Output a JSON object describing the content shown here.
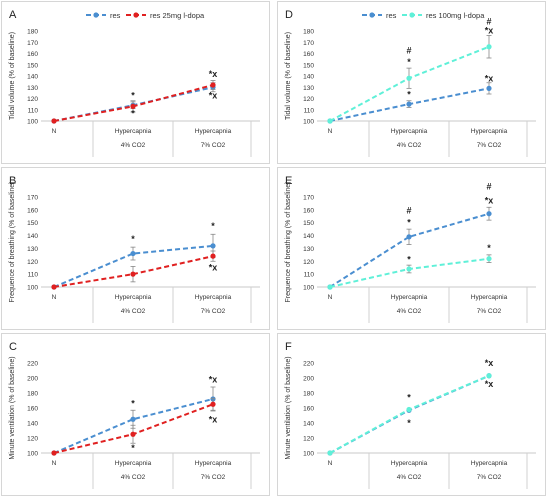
{
  "colors": {
    "res": "#4a8ed0",
    "red": "#e02020",
    "cyan": "#5ff0d8",
    "err": "#888888",
    "frame": "#d6d6d6",
    "grid_text": "#333333"
  },
  "chart_data": [
    {
      "panel": "A",
      "type": "line",
      "ylabel": "Tidal volume (% of baseline)",
      "ylim": [
        100,
        180
      ],
      "yticks": [
        100,
        110,
        120,
        130,
        140,
        150,
        160,
        170,
        180
      ],
      "x": [
        "N",
        "Hypercapnia",
        "Hypercapnia"
      ],
      "x_sub": [
        "",
        "4% CO2",
        "7% CO2"
      ],
      "legend": "top",
      "series": [
        {
          "name": "res",
          "color_key": "res",
          "values": [
            100,
            114,
            130
          ],
          "err": [
            0,
            3,
            4
          ]
        },
        {
          "name": "res 25mg l-dopa",
          "color_key": "red",
          "values": [
            100,
            113,
            132
          ],
          "err": [
            0,
            5,
            4
          ]
        }
      ],
      "annotations": [
        {
          "x": 1,
          "y": 120,
          "text": "*"
        },
        {
          "x": 1,
          "y": 104,
          "text": "*"
        },
        {
          "x": 2,
          "y": 139,
          "text": "*x"
        },
        {
          "x": 2,
          "y": 120,
          "text": "*x"
        }
      ]
    },
    {
      "panel": "B",
      "type": "line",
      "ylabel": "Frequence of breathing (% of baseline)",
      "ylim": [
        100,
        170
      ],
      "yticks": [
        100,
        110,
        120,
        130,
        140,
        150,
        160,
        170
      ],
      "x": [
        "N",
        "Hypercapnia",
        "Hypercapnia"
      ],
      "x_sub": [
        "",
        "4% CO2",
        "7% CO2"
      ],
      "series": [
        {
          "name": "res",
          "color_key": "res",
          "values": [
            100,
            126,
            132
          ],
          "err": [
            0,
            5,
            9
          ]
        },
        {
          "name": "res 25mg l-dopa",
          "color_key": "red",
          "values": [
            100,
            110,
            124
          ],
          "err": [
            0,
            6,
            4
          ]
        }
      ],
      "annotations": [
        {
          "x": 1,
          "y": 135,
          "text": "*"
        },
        {
          "x": 2,
          "y": 145,
          "text": "*"
        },
        {
          "x": 2,
          "y": 113,
          "text": "*x"
        }
      ]
    },
    {
      "panel": "C",
      "type": "line",
      "ylabel": "Minute ventilation (% of baseline)",
      "ylim": [
        100,
        220
      ],
      "yticks": [
        100,
        120,
        140,
        160,
        180,
        200,
        220
      ],
      "x": [
        "N",
        "Hypercapnia",
        "Hypercapnia"
      ],
      "x_sub": [
        "",
        "4% CO2",
        "7% CO2"
      ],
      "series": [
        {
          "name": "res",
          "color_key": "res",
          "values": [
            100,
            145,
            172
          ],
          "err": [
            0,
            12,
            16
          ]
        },
        {
          "name": "res 25mg l-dopa",
          "color_key": "red",
          "values": [
            100,
            125,
            165
          ],
          "err": [
            0,
            12,
            8
          ]
        }
      ],
      "annotations": [
        {
          "x": 1,
          "y": 162,
          "text": "*"
        },
        {
          "x": 1,
          "y": 103,
          "text": "*"
        },
        {
          "x": 2,
          "y": 194,
          "text": "*x"
        },
        {
          "x": 2,
          "y": 141,
          "text": "*x"
        }
      ]
    },
    {
      "panel": "D",
      "type": "line",
      "ylabel": "Tidal volume (% of baseline)",
      "ylim": [
        100,
        180
      ],
      "yticks": [
        100,
        110,
        120,
        130,
        140,
        150,
        160,
        170,
        180
      ],
      "x": [
        "N",
        "Hypercapnia",
        "Hypercapnia"
      ],
      "x_sub": [
        "",
        "4% CO2",
        "7% CO2"
      ],
      "legend": "top",
      "series": [
        {
          "name": "res",
          "color_key": "res",
          "values": [
            100,
            115,
            129
          ],
          "err": [
            0,
            3,
            5
          ]
        },
        {
          "name": "res 100mg l-dopa",
          "color_key": "cyan",
          "values": [
            100,
            138,
            166
          ],
          "err": [
            0,
            9,
            10
          ]
        }
      ],
      "annotations": [
        {
          "x": 1,
          "y": 160,
          "text": "#"
        },
        {
          "x": 1,
          "y": 150,
          "text": "*"
        },
        {
          "x": 1,
          "y": 121,
          "text": "*"
        },
        {
          "x": 2,
          "y": 186,
          "text": "#"
        },
        {
          "x": 2,
          "y": 178,
          "text": "*x"
        },
        {
          "x": 2,
          "y": 135,
          "text": "*x"
        }
      ]
    },
    {
      "panel": "E",
      "type": "line",
      "ylabel": "Frequence of breathing (% of baseline)",
      "ylim": [
        100,
        170
      ],
      "yticks": [
        100,
        110,
        120,
        130,
        140,
        150,
        160,
        170
      ],
      "x": [
        "N",
        "Hypercapnia",
        "Hypercapnia"
      ],
      "x_sub": [
        "",
        "4% CO2",
        "7% CO2"
      ],
      "series": [
        {
          "name": "res",
          "color_key": "res",
          "values": [
            100,
            139,
            157
          ],
          "err": [
            0,
            6,
            5
          ]
        },
        {
          "name": "res 100mg l-dopa",
          "color_key": "cyan",
          "values": [
            100,
            114,
            122
          ],
          "err": [
            0,
            3,
            3
          ]
        }
      ],
      "annotations": [
        {
          "x": 1,
          "y": 157,
          "text": "#"
        },
        {
          "x": 1,
          "y": 148,
          "text": "*"
        },
        {
          "x": 1,
          "y": 119,
          "text": "*"
        },
        {
          "x": 2,
          "y": 176,
          "text": "#"
        },
        {
          "x": 2,
          "y": 165,
          "text": "*x"
        },
        {
          "x": 2,
          "y": 128,
          "text": "*"
        }
      ]
    },
    {
      "panel": "F",
      "type": "line",
      "ylabel": "Minute ventilation (% of baseline)",
      "ylim": [
        100,
        220
      ],
      "yticks": [
        100,
        120,
        140,
        160,
        180,
        200,
        220
      ],
      "x": [
        "N",
        "Hypercapnia",
        "Hypercapnia"
      ],
      "x_sub": [
        "",
        "4% CO2",
        "7% CO2"
      ],
      "series": [
        {
          "name": "res",
          "color_key": "res",
          "values": [
            100,
            157,
            203
          ],
          "err": [
            0,
            0,
            0
          ]
        },
        {
          "name": "res 100mg l-dopa",
          "color_key": "cyan",
          "values": [
            100,
            158,
            203
          ],
          "err": [
            0,
            0,
            0
          ]
        }
      ],
      "annotations": [
        {
          "x": 1,
          "y": 170,
          "text": "*"
        },
        {
          "x": 1,
          "y": 136,
          "text": "*"
        },
        {
          "x": 2,
          "y": 216,
          "text": "*x"
        },
        {
          "x": 2,
          "y": 188,
          "text": "*x"
        }
      ]
    }
  ]
}
